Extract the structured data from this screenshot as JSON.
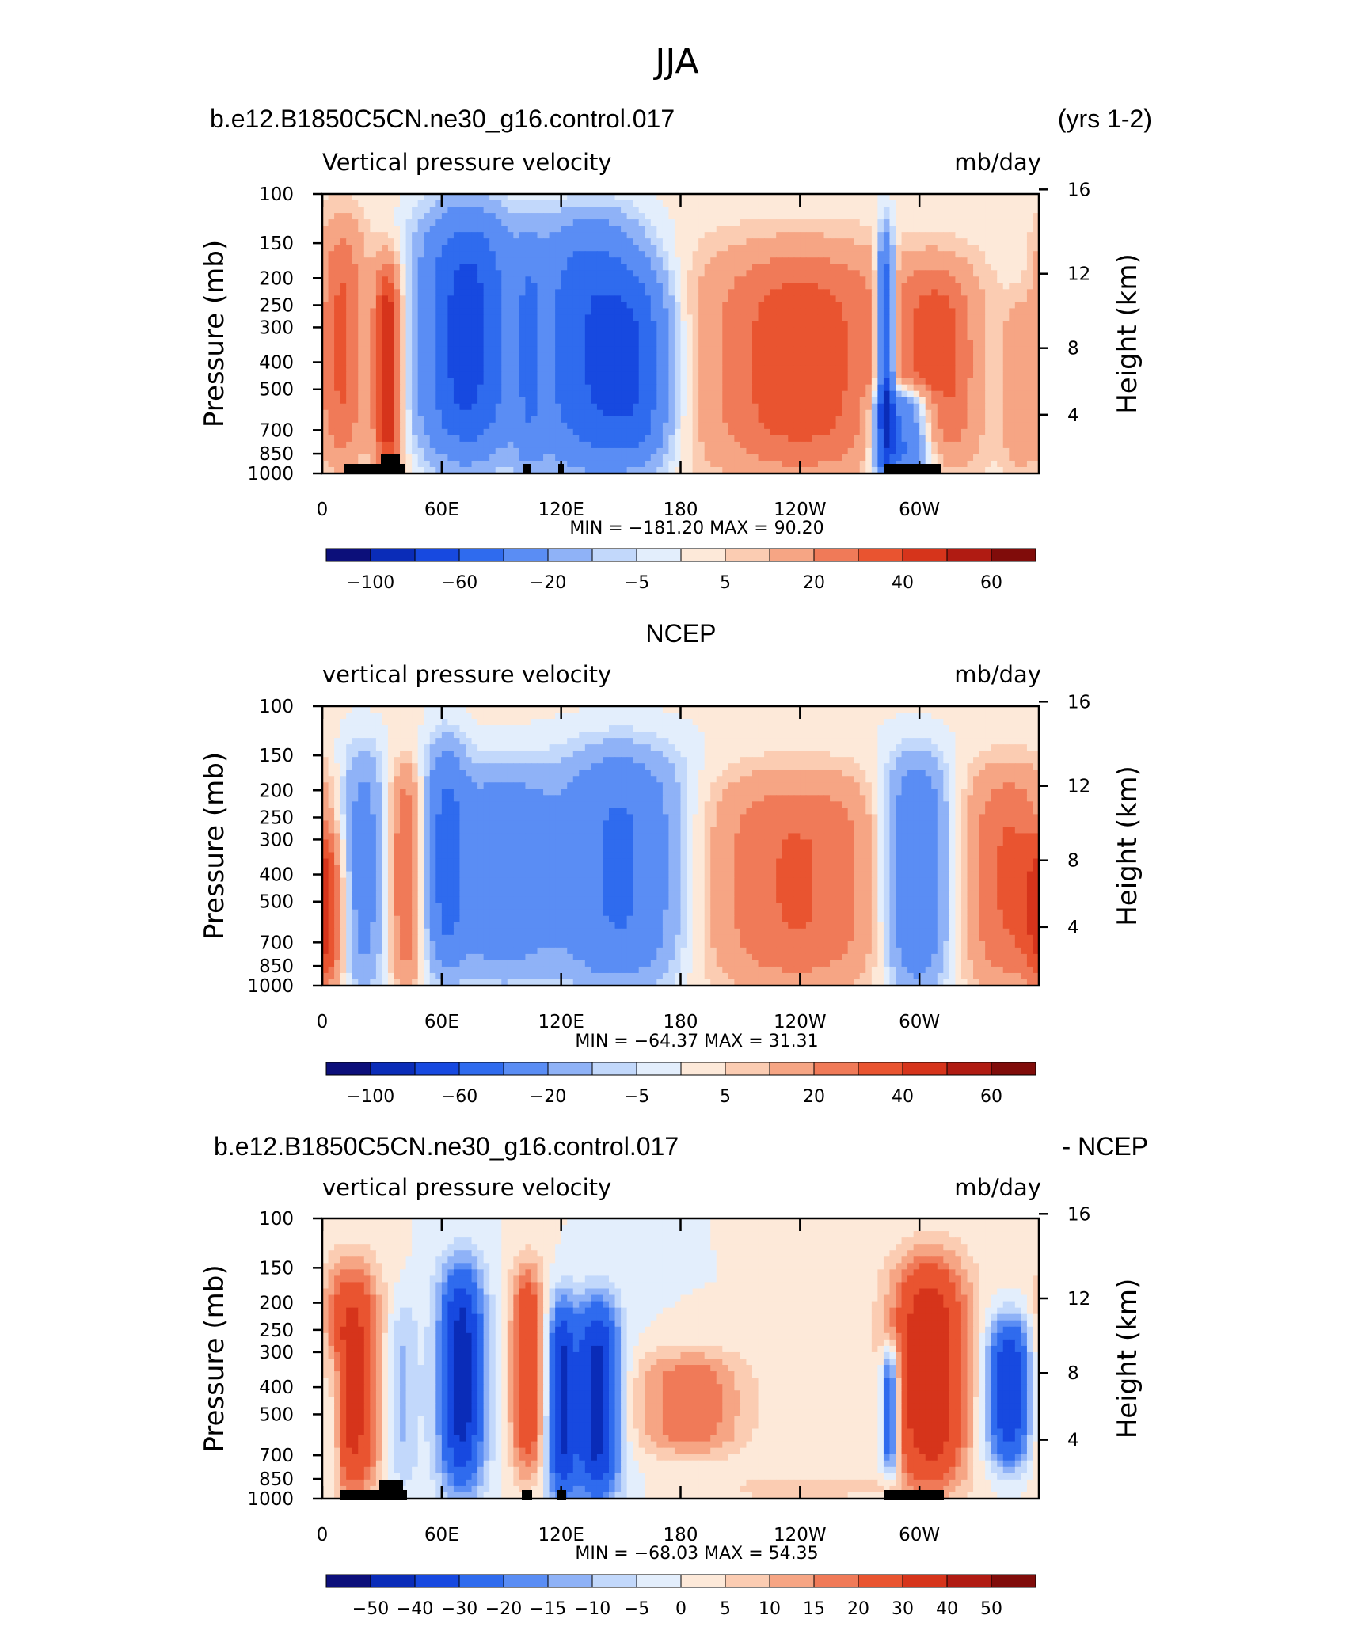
{
  "page_title": "JJA",
  "chart_data": [
    {
      "type": "heatmap",
      "title_left": "b.e12.B1850C5CN.ne30_g16.control.017",
      "title_right": "(yrs 1-2)",
      "subtitle_left": "Vertical pressure velocity",
      "subtitle_right": "mb/day",
      "ylabel": "Pressure (mb)",
      "ylabel_right": "Height (km)",
      "x_ticks": [
        "0",
        "60E",
        "120E",
        "180",
        "120W",
        "60W"
      ],
      "y_ticks": [
        "100",
        "150",
        "200",
        "250",
        "300",
        "400",
        "500",
        "700",
        "850",
        "1000"
      ],
      "y_right_ticks": [
        "16",
        "12",
        "8",
        "4"
      ],
      "stats": "MIN = −181.20   MAX =   90.20",
      "colorbar_ticks": [
        "−100",
        "−60",
        "−20",
        "−5",
        "5",
        "20",
        "40",
        "60"
      ],
      "features": [
        {
          "lon": 10,
          "lonw": 8,
          "p0": 130,
          "p1": 900,
          "v": 30
        },
        {
          "lon": 33,
          "lonw": 5,
          "p0": 180,
          "p1": 1000,
          "v": 50
        },
        {
          "lon": 72,
          "lonw": 16,
          "p0": 120,
          "p1": 850,
          "v": -70
        },
        {
          "lon": 104,
          "lonw": 5,
          "p0": 150,
          "p1": 1000,
          "v": -20
        },
        {
          "lon": 135,
          "lonw": 20,
          "p0": 130,
          "p1": 930,
          "v": -60
        },
        {
          "lon": 160,
          "lonw": 12,
          "p0": 200,
          "p1": 900,
          "v": -35
        },
        {
          "lon": 240,
          "lonw": 35,
          "p0": 160,
          "p1": 980,
          "v": 35
        },
        {
          "lon": 283,
          "lonw": 3,
          "p0": 150,
          "p1": 1000,
          "v": -80
        },
        {
          "lon": 292,
          "lonw": 10,
          "p0": 500,
          "p1": 1000,
          "v": -60
        },
        {
          "lon": 310,
          "lonw": 14,
          "p0": 180,
          "p1": 900,
          "v": 30
        },
        {
          "lon": 350,
          "lonw": 6,
          "p0": 250,
          "p1": 950,
          "v": 15
        }
      ]
    },
    {
      "type": "heatmap",
      "title_center": "NCEP",
      "subtitle_left": "vertical pressure velocity",
      "subtitle_right": "mb/day",
      "ylabel": "Pressure (mb)",
      "ylabel_right": "Height (km)",
      "x_ticks": [
        "0",
        "60E",
        "120E",
        "180",
        "120W",
        "60W"
      ],
      "y_ticks": [
        "100",
        "150",
        "200",
        "250",
        "300",
        "400",
        "500",
        "700",
        "850",
        "1000"
      ],
      "y_right_ticks": [
        "16",
        "12",
        "8",
        "4"
      ],
      "stats": "MIN = −64.37   MAX =   31.31",
      "colorbar_ticks": [
        "−100",
        "−60",
        "−20",
        "−5",
        "5",
        "20",
        "40",
        "60"
      ],
      "features": [
        {
          "lon": 2,
          "lonw": 6,
          "p0": 300,
          "p1": 1000,
          "v": 30
        },
        {
          "lon": 20,
          "lonw": 8,
          "p0": 150,
          "p1": 1000,
          "v": -30
        },
        {
          "lon": 42,
          "lonw": 6,
          "p0": 170,
          "p1": 950,
          "v": 30
        },
        {
          "lon": 62,
          "lonw": 7,
          "p0": 140,
          "p1": 850,
          "v": -40
        },
        {
          "lon": 90,
          "lonw": 18,
          "p0": 170,
          "p1": 900,
          "v": -35
        },
        {
          "lon": 150,
          "lonw": 22,
          "p0": 150,
          "p1": 950,
          "v": -45
        },
        {
          "lon": 238,
          "lonw": 35,
          "p0": 180,
          "p1": 1000,
          "v": 30
        },
        {
          "lon": 298,
          "lonw": 12,
          "p0": 160,
          "p1": 1000,
          "v": -45
        },
        {
          "lon": 345,
          "lonw": 16,
          "p0": 170,
          "p1": 1000,
          "v": 30
        }
      ]
    },
    {
      "type": "heatmap",
      "title_left": "b.e12.B1850C5CN.ne30_g16.control.017",
      "title_right": "- NCEP",
      "subtitle_left": "vertical pressure velocity",
      "subtitle_right": "mb/day",
      "ylabel": "Pressure (mb)",
      "ylabel_right": "Height (km)",
      "x_ticks": [
        "0",
        "60E",
        "120E",
        "180",
        "120W",
        "60W"
      ],
      "y_ticks": [
        "100",
        "150",
        "200",
        "250",
        "300",
        "400",
        "500",
        "700",
        "850",
        "1000"
      ],
      "y_right_ticks": [
        "16",
        "12",
        "8",
        "4"
      ],
      "stats": "MIN = −68.03   MAX =   54.35",
      "colorbar_ticks": [
        "−50",
        "−40",
        "−30",
        "−20",
        "−15",
        "−10",
        "−5",
        "0",
        "5",
        "10",
        "15",
        "20",
        "30",
        "40",
        "50"
      ],
      "features": [
        {
          "lon": 15,
          "lonw": 10,
          "p0": 150,
          "p1": 950,
          "v": 35
        },
        {
          "lon": 6,
          "lonw": 3,
          "p0": 300,
          "p1": 900,
          "v": -15
        },
        {
          "lon": 40,
          "lonw": 6,
          "p0": 200,
          "p1": 900,
          "v": -12
        },
        {
          "lon": 70,
          "lonw": 8,
          "p0": 150,
          "p1": 900,
          "v": -45
        },
        {
          "lon": 103,
          "lonw": 6,
          "p0": 150,
          "p1": 800,
          "v": 30
        },
        {
          "lon": 120,
          "lonw": 5,
          "p0": 200,
          "p1": 1000,
          "v": -40
        },
        {
          "lon": 138,
          "lonw": 8,
          "p0": 200,
          "p1": 1000,
          "v": -45
        },
        {
          "lon": 185,
          "lonw": 20,
          "p0": 300,
          "p1": 700,
          "v": 20
        },
        {
          "lon": 285,
          "lonw": 3,
          "p0": 300,
          "p1": 800,
          "v": -40
        },
        {
          "lon": 305,
          "lonw": 14,
          "p0": 140,
          "p1": 900,
          "v": 40
        },
        {
          "lon": 345,
          "lonw": 8,
          "p0": 230,
          "p1": 750,
          "v": -40
        },
        {
          "lon": 240,
          "lonw": 30,
          "p0": 850,
          "p1": 1000,
          "v": 8
        }
      ]
    }
  ],
  "colors": {
    "neg": [
      "#0c0f7a",
      "#0a2cb8",
      "#1749e0",
      "#2f6bee",
      "#5a8df4",
      "#8fb2f7",
      "#c2d8fb",
      "#e3eefc"
    ],
    "pos": [
      "#fde9d9",
      "#fbccb2",
      "#f6a584",
      "#f07a58",
      "#e95430",
      "#d6341b",
      "#b01b12",
      "#800c0a"
    ],
    "land": "#000000"
  }
}
